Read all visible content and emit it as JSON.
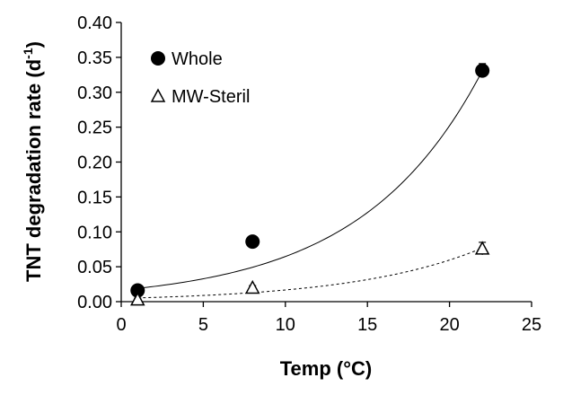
{
  "chart_data": {
    "type": "scatter",
    "xlabel": "Temp (°C)",
    "ylabel_main": "TNT degradation rate (d",
    "ylabel_sup": "-1",
    "ylabel_close": ")",
    "xlim": [
      0,
      25
    ],
    "ylim": [
      0,
      0.4
    ],
    "xticks": [
      0,
      5,
      10,
      15,
      20,
      25
    ],
    "yticks": [
      0.0,
      0.05,
      0.1,
      0.15,
      0.2,
      0.25,
      0.3,
      0.35,
      0.4
    ],
    "xtick_labels": [
      "0",
      "5",
      "10",
      "15",
      "20",
      "25"
    ],
    "ytick_labels": [
      "0.00",
      "0.05",
      "0.10",
      "0.15",
      "0.20",
      "0.25",
      "0.30",
      "0.35",
      "0.40"
    ],
    "grid": false,
    "legend_position": "top-left",
    "series": [
      {
        "name": "Whole",
        "marker": "filled-circle",
        "color": "#000000",
        "x": [
          1,
          8,
          22
        ],
        "y": [
          0.016,
          0.086,
          0.331
        ],
        "yerr": [
          0.003,
          0.004,
          0.01
        ],
        "fit": {
          "type": "exponential",
          "a": 0.0166,
          "b": 0.136,
          "line_style": "solid"
        }
      },
      {
        "name": "MW-Steril",
        "marker": "open-triangle",
        "color": "#000000",
        "x": [
          1,
          8,
          22
        ],
        "y": [
          0.003,
          0.02,
          0.076
        ],
        "yerr": [
          0.002,
          0.003,
          0.009
        ],
        "fit": {
          "type": "exponential",
          "a": 0.0047,
          "b": 0.127,
          "line_style": "dashed"
        }
      }
    ]
  }
}
